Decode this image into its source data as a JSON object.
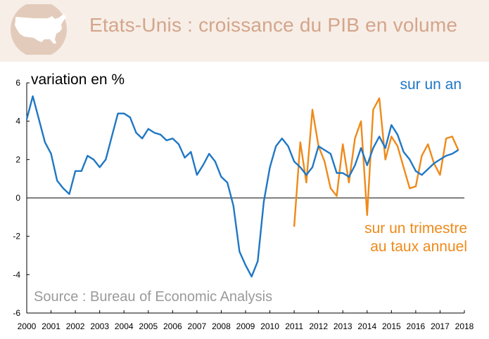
{
  "header": {
    "title": "Etats-Unis : croissance du PIB en volume",
    "icon": "usa-map-icon",
    "background": "#f7eee7",
    "title_color": "#d4a58b"
  },
  "chart_data": {
    "type": "line",
    "ylabel": "variation en %",
    "ylim": [
      -6,
      6
    ],
    "yticks": [
      "6",
      "4",
      "2",
      "0",
      "-2",
      "-4",
      "-6"
    ],
    "xlim": [
      2000,
      2018
    ],
    "xticks": [
      "2000",
      "2001",
      "2002",
      "2003",
      "2004",
      "2005",
      "2006",
      "2007",
      "2008",
      "2009",
      "2010",
      "2011",
      "2012",
      "2013",
      "2014",
      "2015",
      "2016",
      "2017",
      "2018"
    ],
    "source": "Source : Bureau of Economic Analysis",
    "grid": false,
    "series": [
      {
        "name": "sur un an",
        "color": "#1f77c4",
        "x": [
          2000.0,
          2000.25,
          2000.5,
          2000.75,
          2001.0,
          2001.25,
          2001.5,
          2001.75,
          2002.0,
          2002.25,
          2002.5,
          2002.75,
          2003.0,
          2003.25,
          2003.5,
          2003.75,
          2004.0,
          2004.25,
          2004.5,
          2004.75,
          2005.0,
          2005.25,
          2005.5,
          2005.75,
          2006.0,
          2006.25,
          2006.5,
          2006.75,
          2007.0,
          2007.25,
          2007.5,
          2007.75,
          2008.0,
          2008.25,
          2008.5,
          2008.75,
          2009.0,
          2009.25,
          2009.5,
          2009.75,
          2010.0,
          2010.25,
          2010.5,
          2010.75,
          2011.0,
          2011.25,
          2011.5,
          2011.75,
          2012.0,
          2012.25,
          2012.5,
          2012.75,
          2013.0,
          2013.25,
          2013.5,
          2013.75,
          2014.0,
          2014.25,
          2014.5,
          2014.75,
          2015.0,
          2015.25,
          2015.5,
          2015.75,
          2016.0,
          2016.25,
          2016.5,
          2016.75,
          2017.0,
          2017.25,
          2017.5,
          2017.75
        ],
        "values": [
          4.1,
          5.3,
          4.1,
          2.9,
          2.3,
          0.9,
          0.5,
          0.2,
          1.4,
          1.4,
          2.2,
          2.0,
          1.6,
          2.0,
          3.2,
          4.4,
          4.4,
          4.2,
          3.4,
          3.1,
          3.6,
          3.4,
          3.3,
          3.0,
          3.1,
          2.8,
          2.1,
          2.4,
          1.2,
          1.7,
          2.3,
          1.9,
          1.1,
          0.8,
          -0.4,
          -2.8,
          -3.5,
          -4.1,
          -3.3,
          -0.2,
          1.6,
          2.7,
          3.1,
          2.7,
          1.9,
          1.6,
          1.2,
          1.6,
          2.7,
          2.5,
          2.3,
          1.3,
          1.3,
          1.1,
          1.7,
          2.6,
          1.7,
          2.6,
          3.2,
          2.6,
          3.8,
          3.3,
          2.4,
          2.0,
          1.4,
          1.2,
          1.5,
          1.8,
          2.0,
          2.2,
          2.3,
          2.5
        ]
      },
      {
        "name": "sur un trimestre au taux annuel",
        "label_lines": [
          "sur un trimestre",
          "au taux annuel"
        ],
        "color": "#ee8a1a",
        "x": [
          2011.0,
          2011.25,
          2011.5,
          2011.75,
          2012.0,
          2012.25,
          2012.5,
          2012.75,
          2013.0,
          2013.25,
          2013.5,
          2013.75,
          2014.0,
          2014.25,
          2014.5,
          2014.75,
          2015.0,
          2015.25,
          2015.5,
          2015.75,
          2016.0,
          2016.25,
          2016.5,
          2016.75,
          2017.0,
          2017.25,
          2017.5,
          2017.75
        ],
        "values": [
          -1.5,
          2.9,
          0.8,
          4.6,
          2.7,
          1.9,
          0.5,
          0.1,
          2.8,
          0.8,
          3.1,
          4.0,
          -0.9,
          4.6,
          5.2,
          2.0,
          3.2,
          2.7,
          1.6,
          0.5,
          0.6,
          2.2,
          2.8,
          1.8,
          1.2,
          3.1,
          3.2,
          2.5
        ]
      }
    ]
  }
}
